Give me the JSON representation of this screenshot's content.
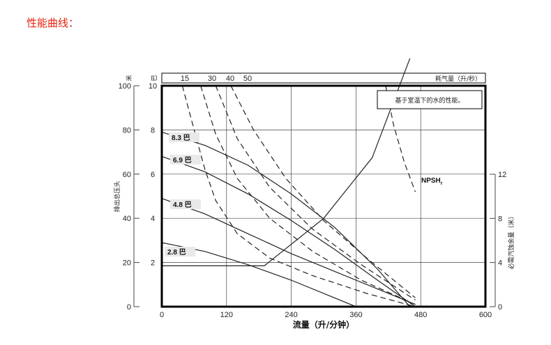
{
  "page": {
    "heading": "性能曲线："
  },
  "chart_data": {
    "type": "line",
    "title": "",
    "note": "基于室温下的水的性能。",
    "xlabel": "流量（升/分钟）",
    "ylabel_left_outer": "排出总压头",
    "ylabel_left_outer_unit": "米",
    "ylabel_left_inner_unit": "巴",
    "ylabel_right": "必需汽蚀余量（米）",
    "top_axis_label": "耗气量（升/秒）",
    "top_ticks": [
      "15",
      "30",
      "40",
      "50"
    ],
    "xlim": [
      0,
      600
    ],
    "x_ticks": [
      0,
      120,
      240,
      360,
      480,
      600
    ],
    "ylim": [
      0,
      100
    ],
    "y_ticks": [
      0,
      20,
      40,
      60,
      80,
      100
    ],
    "y2_ticks": [
      2,
      4,
      6,
      8,
      10
    ],
    "y3_ticks": [
      0,
      4,
      8,
      12
    ],
    "y3_lim": [
      0,
      24
    ],
    "npsh_label": "NPSH",
    "npsh_subscript": "r",
    "colors": {
      "solid": "#222222",
      "dashed": "#222222",
      "frame": "#000000",
      "grid": "#444444",
      "label_bg": "#e9e9e9"
    },
    "series": [
      {
        "name": "8.3 巴",
        "style": "solid",
        "x": [
          0,
          80,
          160,
          240,
          320,
          400,
          460
        ],
        "y": [
          79,
          73,
          64,
          51,
          36,
          17,
          0
        ]
      },
      {
        "name": "6.9 巴",
        "style": "solid",
        "x": [
          0,
          80,
          160,
          240,
          320,
          400,
          470
        ],
        "y": [
          68,
          61,
          51,
          39,
          26,
          12,
          0
        ]
      },
      {
        "name": "4.8 巴",
        "style": "solid",
        "x": [
          0,
          80,
          160,
          240,
          320,
          400,
          470
        ],
        "y": [
          49,
          42,
          33,
          24,
          16,
          8,
          1
        ]
      },
      {
        "name": "2.8 巴",
        "style": "solid",
        "x": [
          0,
          80,
          160,
          240,
          320,
          360
        ],
        "y": [
          29,
          25,
          19,
          12,
          4,
          0
        ]
      },
      {
        "name": "15",
        "style": "dashed",
        "x": [
          38,
          60,
          80,
          100,
          140,
          200,
          280,
          380,
          470
        ],
        "y": [
          100,
          80,
          62,
          48,
          33,
          22,
          14,
          6,
          0
        ]
      },
      {
        "name": "30",
        "style": "dashed",
        "x": [
          72,
          100,
          140,
          200,
          280,
          370,
          470
        ],
        "y": [
          100,
          78,
          58,
          40,
          25,
          12,
          1
        ]
      },
      {
        "name": "40",
        "style": "dashed",
        "x": [
          100,
          140,
          200,
          280,
          370,
          470
        ],
        "y": [
          100,
          76,
          54,
          35,
          19,
          3
        ]
      },
      {
        "name": "50",
        "style": "dashed",
        "x": [
          128,
          170,
          230,
          300,
          380,
          470
        ],
        "y": [
          100,
          80,
          58,
          39,
          22,
          4
        ]
      },
      {
        "name": "",
        "style": "dashed",
        "x": [
          415,
          430,
          450,
          470
        ],
        "y": [
          100,
          82,
          65,
          52
        ]
      },
      {
        "name": "NPSH",
        "style": "solid",
        "axis": "y3",
        "x": [
          0,
          190,
          300,
          390,
          460
        ],
        "y": [
          3.7,
          3.7,
          8,
          13.5,
          22.5
        ]
      }
    ],
    "pressure_labels": [
      "8.3 巴",
      "6.9 巴",
      "4.8 巴",
      "2.8 巴"
    ]
  }
}
